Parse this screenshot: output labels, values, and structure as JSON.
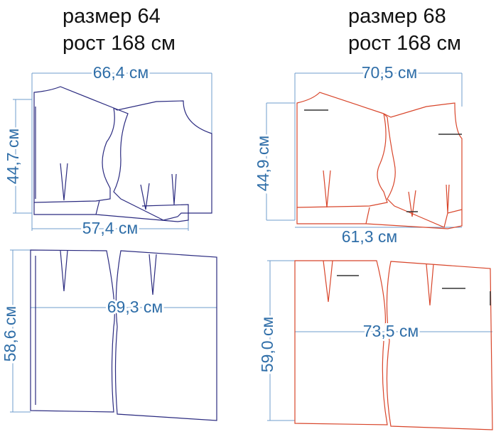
{
  "patterns": [
    {
      "size_title": "размер 64",
      "height_title": "рост 168 см",
      "top": {
        "width": "66,4 см",
        "height": "44,7 см",
        "bottom_width": "57,4 см"
      },
      "bottom": {
        "height": "58,6 см",
        "width": "69,3 см"
      }
    },
    {
      "size_title": "размер 68",
      "height_title": "рост 168 см",
      "top": {
        "width": "70,5 см",
        "height": "44,9 см",
        "bottom_width": "61,3 см"
      },
      "bottom": {
        "height": "59,0 см",
        "width": "73,5 см"
      }
    }
  ]
}
